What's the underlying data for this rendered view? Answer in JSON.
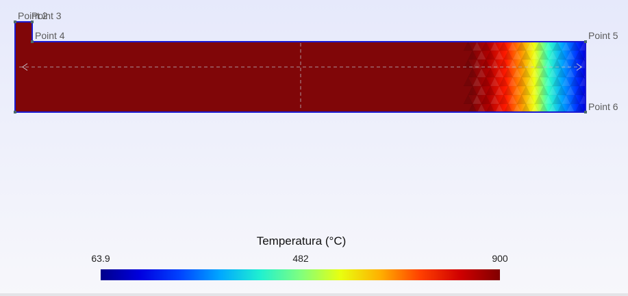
{
  "points": [
    {
      "id": "p2",
      "label": "Point 2"
    },
    {
      "id": "p3",
      "label": "Point 3"
    },
    {
      "id": "p4",
      "label": "Point 4"
    },
    {
      "id": "p5",
      "label": "Point 5"
    },
    {
      "id": "p6",
      "label": "Point 6"
    }
  ],
  "legend": {
    "title": "Temperatura (°C)",
    "min": "63.9",
    "mid": "482",
    "max": "900"
  },
  "colors": {
    "outline": "#1a1ad0",
    "hot": "#800000",
    "cold": "#00008b"
  }
}
